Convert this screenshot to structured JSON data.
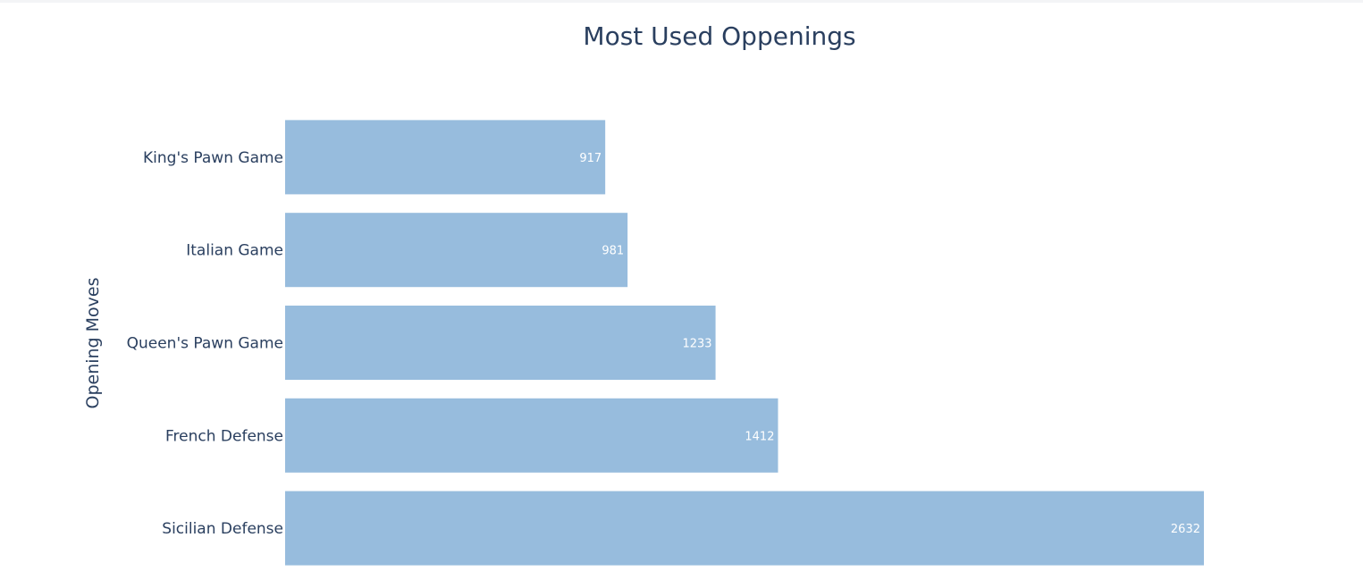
{
  "chart_data": {
    "type": "bar",
    "orientation": "horizontal",
    "title": "Most Used Oppenings",
    "xlabel": "",
    "ylabel": "Opening Moves",
    "categories": [
      "King's Pawn Game",
      "Italian Game",
      "Queen's Pawn Game",
      "French Defense",
      "Sicilian Defense"
    ],
    "values": [
      917,
      981,
      1233,
      1412,
      2632
    ],
    "data_labels": [
      "917",
      "981",
      "1233",
      "1412",
      "2632"
    ],
    "xlim": [
      0,
      2632
    ],
    "grid": false,
    "bar_color": "#97bcdd",
    "text_color": "#2a3f5f",
    "data_label_color": "#ffffff"
  }
}
